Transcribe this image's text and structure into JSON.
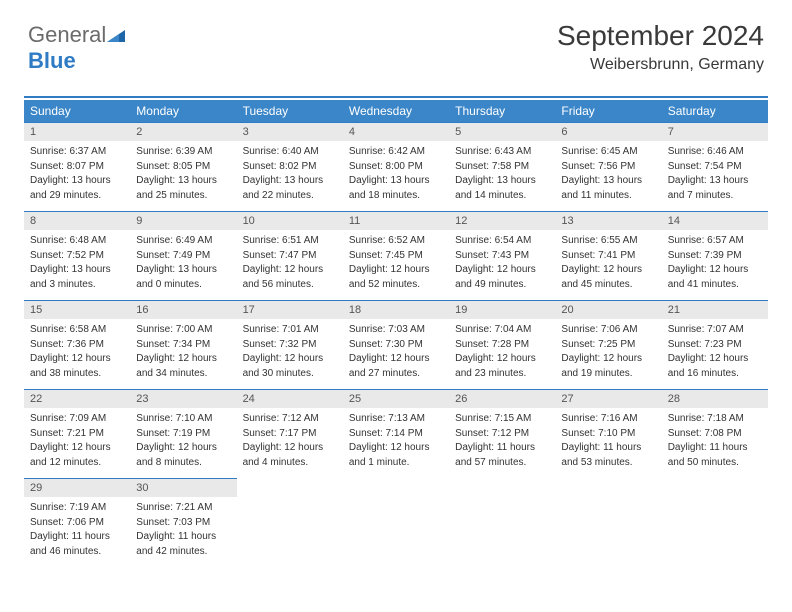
{
  "logo": {
    "part1": "General",
    "part2": "Blue"
  },
  "header": {
    "month_title": "September 2024",
    "location": "Weibersbrunn, Germany"
  },
  "colors": {
    "accent": "#2f7cc4",
    "header_bg": "#3a86c8",
    "daynum_bg": "#e9e9e9",
    "text": "#333333",
    "logo_gray": "#6b6b6b"
  },
  "calendar": {
    "days_of_week": [
      "Sunday",
      "Monday",
      "Tuesday",
      "Wednesday",
      "Thursday",
      "Friday",
      "Saturday"
    ],
    "days": [
      {
        "n": "1",
        "sunrise": "Sunrise: 6:37 AM",
        "sunset": "Sunset: 8:07 PM",
        "dl1": "Daylight: 13 hours",
        "dl2": "and 29 minutes."
      },
      {
        "n": "2",
        "sunrise": "Sunrise: 6:39 AM",
        "sunset": "Sunset: 8:05 PM",
        "dl1": "Daylight: 13 hours",
        "dl2": "and 25 minutes."
      },
      {
        "n": "3",
        "sunrise": "Sunrise: 6:40 AM",
        "sunset": "Sunset: 8:02 PM",
        "dl1": "Daylight: 13 hours",
        "dl2": "and 22 minutes."
      },
      {
        "n": "4",
        "sunrise": "Sunrise: 6:42 AM",
        "sunset": "Sunset: 8:00 PM",
        "dl1": "Daylight: 13 hours",
        "dl2": "and 18 minutes."
      },
      {
        "n": "5",
        "sunrise": "Sunrise: 6:43 AM",
        "sunset": "Sunset: 7:58 PM",
        "dl1": "Daylight: 13 hours",
        "dl2": "and 14 minutes."
      },
      {
        "n": "6",
        "sunrise": "Sunrise: 6:45 AM",
        "sunset": "Sunset: 7:56 PM",
        "dl1": "Daylight: 13 hours",
        "dl2": "and 11 minutes."
      },
      {
        "n": "7",
        "sunrise": "Sunrise: 6:46 AM",
        "sunset": "Sunset: 7:54 PM",
        "dl1": "Daylight: 13 hours",
        "dl2": "and 7 minutes."
      },
      {
        "n": "8",
        "sunrise": "Sunrise: 6:48 AM",
        "sunset": "Sunset: 7:52 PM",
        "dl1": "Daylight: 13 hours",
        "dl2": "and 3 minutes."
      },
      {
        "n": "9",
        "sunrise": "Sunrise: 6:49 AM",
        "sunset": "Sunset: 7:49 PM",
        "dl1": "Daylight: 13 hours",
        "dl2": "and 0 minutes."
      },
      {
        "n": "10",
        "sunrise": "Sunrise: 6:51 AM",
        "sunset": "Sunset: 7:47 PM",
        "dl1": "Daylight: 12 hours",
        "dl2": "and 56 minutes."
      },
      {
        "n": "11",
        "sunrise": "Sunrise: 6:52 AM",
        "sunset": "Sunset: 7:45 PM",
        "dl1": "Daylight: 12 hours",
        "dl2": "and 52 minutes."
      },
      {
        "n": "12",
        "sunrise": "Sunrise: 6:54 AM",
        "sunset": "Sunset: 7:43 PM",
        "dl1": "Daylight: 12 hours",
        "dl2": "and 49 minutes."
      },
      {
        "n": "13",
        "sunrise": "Sunrise: 6:55 AM",
        "sunset": "Sunset: 7:41 PM",
        "dl1": "Daylight: 12 hours",
        "dl2": "and 45 minutes."
      },
      {
        "n": "14",
        "sunrise": "Sunrise: 6:57 AM",
        "sunset": "Sunset: 7:39 PM",
        "dl1": "Daylight: 12 hours",
        "dl2": "and 41 minutes."
      },
      {
        "n": "15",
        "sunrise": "Sunrise: 6:58 AM",
        "sunset": "Sunset: 7:36 PM",
        "dl1": "Daylight: 12 hours",
        "dl2": "and 38 minutes."
      },
      {
        "n": "16",
        "sunrise": "Sunrise: 7:00 AM",
        "sunset": "Sunset: 7:34 PM",
        "dl1": "Daylight: 12 hours",
        "dl2": "and 34 minutes."
      },
      {
        "n": "17",
        "sunrise": "Sunrise: 7:01 AM",
        "sunset": "Sunset: 7:32 PM",
        "dl1": "Daylight: 12 hours",
        "dl2": "and 30 minutes."
      },
      {
        "n": "18",
        "sunrise": "Sunrise: 7:03 AM",
        "sunset": "Sunset: 7:30 PM",
        "dl1": "Daylight: 12 hours",
        "dl2": "and 27 minutes."
      },
      {
        "n": "19",
        "sunrise": "Sunrise: 7:04 AM",
        "sunset": "Sunset: 7:28 PM",
        "dl1": "Daylight: 12 hours",
        "dl2": "and 23 minutes."
      },
      {
        "n": "20",
        "sunrise": "Sunrise: 7:06 AM",
        "sunset": "Sunset: 7:25 PM",
        "dl1": "Daylight: 12 hours",
        "dl2": "and 19 minutes."
      },
      {
        "n": "21",
        "sunrise": "Sunrise: 7:07 AM",
        "sunset": "Sunset: 7:23 PM",
        "dl1": "Daylight: 12 hours",
        "dl2": "and 16 minutes."
      },
      {
        "n": "22",
        "sunrise": "Sunrise: 7:09 AM",
        "sunset": "Sunset: 7:21 PM",
        "dl1": "Daylight: 12 hours",
        "dl2": "and 12 minutes."
      },
      {
        "n": "23",
        "sunrise": "Sunrise: 7:10 AM",
        "sunset": "Sunset: 7:19 PM",
        "dl1": "Daylight: 12 hours",
        "dl2": "and 8 minutes."
      },
      {
        "n": "24",
        "sunrise": "Sunrise: 7:12 AM",
        "sunset": "Sunset: 7:17 PM",
        "dl1": "Daylight: 12 hours",
        "dl2": "and 4 minutes."
      },
      {
        "n": "25",
        "sunrise": "Sunrise: 7:13 AM",
        "sunset": "Sunset: 7:14 PM",
        "dl1": "Daylight: 12 hours",
        "dl2": "and 1 minute."
      },
      {
        "n": "26",
        "sunrise": "Sunrise: 7:15 AM",
        "sunset": "Sunset: 7:12 PM",
        "dl1": "Daylight: 11 hours",
        "dl2": "and 57 minutes."
      },
      {
        "n": "27",
        "sunrise": "Sunrise: 7:16 AM",
        "sunset": "Sunset: 7:10 PM",
        "dl1": "Daylight: 11 hours",
        "dl2": "and 53 minutes."
      },
      {
        "n": "28",
        "sunrise": "Sunrise: 7:18 AM",
        "sunset": "Sunset: 7:08 PM",
        "dl1": "Daylight: 11 hours",
        "dl2": "and 50 minutes."
      },
      {
        "n": "29",
        "sunrise": "Sunrise: 7:19 AM",
        "sunset": "Sunset: 7:06 PM",
        "dl1": "Daylight: 11 hours",
        "dl2": "and 46 minutes."
      },
      {
        "n": "30",
        "sunrise": "Sunrise: 7:21 AM",
        "sunset": "Sunset: 7:03 PM",
        "dl1": "Daylight: 11 hours",
        "dl2": "and 42 minutes."
      }
    ]
  }
}
